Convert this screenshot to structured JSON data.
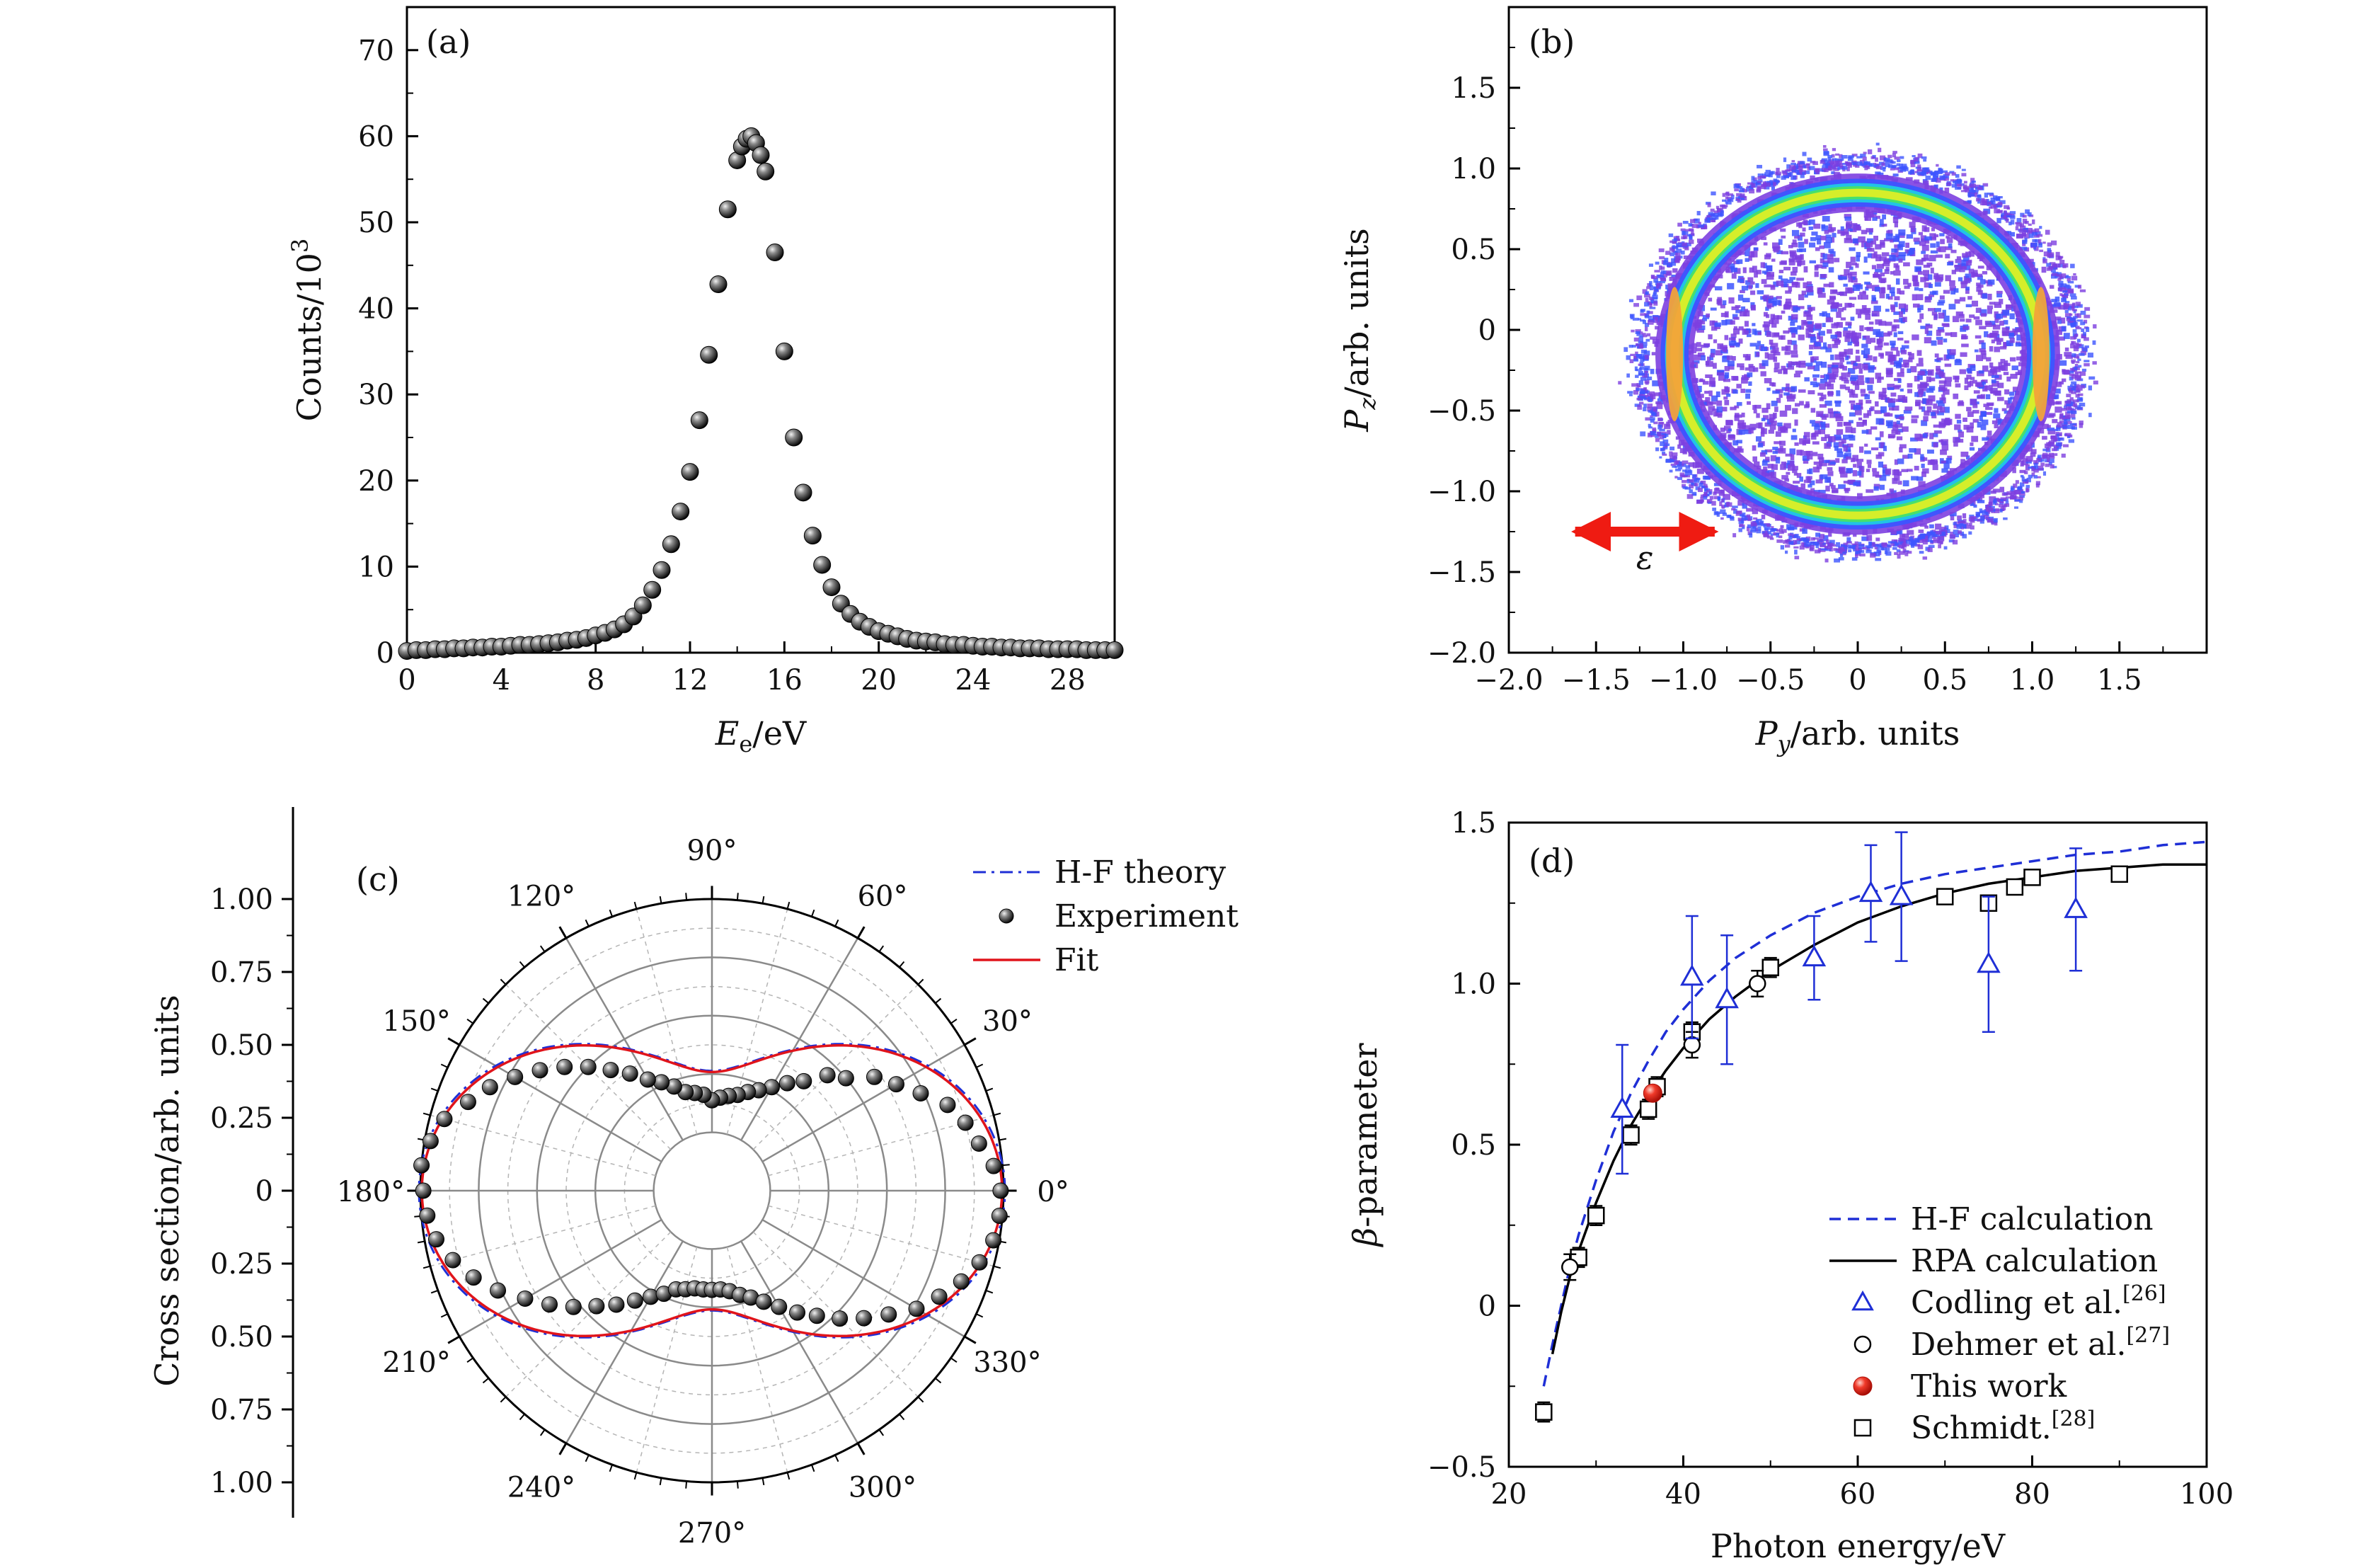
{
  "chart_data": [
    {
      "panel": "(a)",
      "type": "scatter",
      "xlabel": "Eₑ/eV",
      "ylabel": "Counts/10³",
      "xlim": [
        0,
        30
      ],
      "ylim": [
        0,
        75
      ],
      "xticks": [
        "0",
        "4",
        "8",
        "12",
        "16",
        "20",
        "24",
        "28"
      ],
      "yticks": [
        "0",
        "10",
        "20",
        "30",
        "40",
        "50",
        "60",
        "70"
      ],
      "series": [
        {
          "marker": "sphere",
          "x": [
            0,
            0.4,
            0.8,
            1.2,
            1.6,
            2.0,
            2.4,
            2.8,
            3.2,
            3.6,
            4.0,
            4.4,
            4.8,
            5.2,
            5.6,
            6.0,
            6.4,
            6.8,
            7.2,
            7.6,
            8.0,
            8.4,
            8.8,
            9.2,
            9.6,
            10.0,
            10.4,
            10.8,
            11.2,
            11.6,
            12.0,
            12.4,
            12.8,
            13.2,
            13.6,
            14.0,
            14.2,
            14.4,
            14.6,
            14.8,
            15.0,
            15.2,
            15.6,
            16.0,
            16.4,
            16.8,
            17.2,
            17.6,
            18.0,
            18.4,
            18.8,
            19.2,
            19.6,
            20.0,
            20.4,
            20.8,
            21.2,
            21.6,
            22.0,
            22.4,
            22.8,
            23.2,
            23.6,
            24.0,
            24.4,
            24.8,
            25.2,
            25.6,
            26.0,
            26.4,
            26.8,
            27.2,
            27.6,
            28.0,
            28.4,
            28.8,
            29.2,
            29.6,
            30.0
          ],
          "y": [
            0.2,
            0.3,
            0.3,
            0.4,
            0.4,
            0.5,
            0.5,
            0.6,
            0.6,
            0.7,
            0.7,
            0.8,
            0.9,
            0.9,
            1.0,
            1.1,
            1.2,
            1.4,
            1.5,
            1.7,
            2.0,
            2.3,
            2.7,
            3.3,
            4.2,
            5.5,
            7.3,
            9.6,
            12.6,
            16.4,
            21.0,
            27.0,
            34.6,
            42.8,
            51.5,
            57.2,
            58.8,
            59.7,
            60.0,
            59.2,
            57.8,
            55.9,
            46.5,
            35.0,
            25.0,
            18.6,
            13.6,
            10.2,
            7.6,
            5.7,
            4.5,
            3.6,
            3.0,
            2.5,
            2.2,
            1.9,
            1.6,
            1.4,
            1.3,
            1.2,
            1.0,
            0.9,
            0.9,
            0.8,
            0.7,
            0.7,
            0.6,
            0.6,
            0.5,
            0.5,
            0.5,
            0.4,
            0.4,
            0.4,
            0.4,
            0.3,
            0.3,
            0.3,
            0.3
          ]
        }
      ]
    },
    {
      "panel": "(b)",
      "type": "heatmap",
      "xlabel": "Py/arb. units",
      "ylabel": "Pz/arb. units",
      "xlim": [
        -2.0,
        2.0
      ],
      "ylim": [
        -2.0,
        2.0
      ],
      "xticks": [
        "−2.0",
        "−1.5",
        "−1.0",
        "−0.5",
        "0",
        "0.5",
        "1.0",
        "1.5"
      ],
      "yticks": [
        "−2.0",
        "−1.5",
        "−1.0",
        "−0.5",
        "0",
        "0.5",
        "1.0",
        "1.5"
      ],
      "ring_radius": 1.0,
      "arrow_label": "ε",
      "colors": [
        "#7d3fe0",
        "#3d55ff",
        "#21c3e6",
        "#48e06b",
        "#d6ee2a",
        "#f2a33a",
        "#ee7e1e"
      ]
    },
    {
      "panel": "(c)",
      "type": "line",
      "polar": true,
      "ylabel": "Cross section/arb. units",
      "yticks": [
        "1.00",
        "0.75",
        "0.50",
        "0.25",
        "0",
        "0.25",
        "0.50",
        "0.75",
        "1.00"
      ],
      "angle_labels": [
        "0°",
        "30°",
        "60°",
        "90°",
        "120°",
        "150°",
        "180°",
        "210°",
        "240°",
        "270°",
        "300°",
        "330°"
      ],
      "beta": 0.65,
      "legend": [
        "H-F theory",
        "Experiment",
        "Fit"
      ],
      "experiment_angles": [
        0,
        5,
        10,
        15,
        20,
        25,
        30,
        35,
        40,
        45,
        50,
        55,
        60,
        65,
        70,
        75,
        80,
        85,
        90,
        95,
        100,
        105,
        110,
        115,
        120,
        125,
        130,
        135,
        140,
        145,
        150,
        155,
        160,
        165,
        170,
        175,
        180,
        185,
        190,
        195,
        200,
        205,
        210,
        215,
        220,
        225,
        230,
        235,
        240,
        245,
        250,
        255,
        260,
        265,
        270,
        275,
        280,
        285,
        290,
        295,
        300,
        305,
        310,
        315,
        320,
        325,
        330,
        335,
        340,
        345,
        350,
        355
      ],
      "experiment_r": [
        0.99,
        0.97,
        0.93,
        0.9,
        0.86,
        0.79,
        0.73,
        0.68,
        0.6,
        0.56,
        0.49,
        0.45,
        0.41,
        0.38,
        0.36,
        0.34,
        0.33,
        0.32,
        0.31,
        0.33,
        0.34,
        0.35,
        0.38,
        0.41,
        0.44,
        0.49,
        0.54,
        0.6,
        0.66,
        0.72,
        0.78,
        0.84,
        0.89,
        0.95,
        0.98,
        1.0,
        0.99,
        0.98,
        0.96,
        0.92,
        0.87,
        0.81,
        0.74,
        0.68,
        0.62,
        0.56,
        0.51,
        0.46,
        0.42,
        0.39,
        0.36,
        0.35,
        0.34,
        0.34,
        0.34,
        0.34,
        0.35,
        0.37,
        0.39,
        0.42,
        0.46,
        0.51,
        0.56,
        0.62,
        0.68,
        0.74,
        0.81,
        0.86,
        0.91,
        0.95,
        0.98,
        0.99
      ]
    },
    {
      "panel": "(d)",
      "type": "scatter",
      "xlabel": "Photon energy/eV",
      "ylabel": "β-parameter",
      "xlim": [
        20,
        100
      ],
      "ylim": [
        -0.5,
        1.5
      ],
      "xticks": [
        "20",
        "40",
        "60",
        "80",
        "100"
      ],
      "yticks": [
        "−0.5",
        "0",
        "0.5",
        "1.0",
        "1.5"
      ],
      "series": [
        {
          "name": "H-F calculation",
          "style": "dashed",
          "color": "#1f2fd6",
          "x": [
            24,
            25,
            26,
            27,
            28,
            30,
            32,
            34,
            36,
            38,
            40,
            43,
            46,
            50,
            55,
            60,
            65,
            70,
            75,
            80,
            85,
            90,
            95,
            100
          ],
          "y": [
            -0.25,
            -0.12,
            0.0,
            0.12,
            0.22,
            0.39,
            0.54,
            0.66,
            0.76,
            0.85,
            0.92,
            1.01,
            1.08,
            1.15,
            1.22,
            1.27,
            1.31,
            1.34,
            1.36,
            1.38,
            1.4,
            1.41,
            1.43,
            1.44
          ]
        },
        {
          "name": "RPA calculation",
          "style": "solid",
          "color": "#000000",
          "x": [
            25,
            26,
            27,
            28,
            30,
            32,
            34,
            36,
            38,
            40,
            43,
            46,
            50,
            55,
            60,
            65,
            70,
            75,
            80,
            85,
            90,
            95,
            100
          ],
          "y": [
            -0.15,
            -0.02,
            0.09,
            0.17,
            0.32,
            0.45,
            0.56,
            0.65,
            0.73,
            0.8,
            0.89,
            0.96,
            1.04,
            1.12,
            1.19,
            1.24,
            1.28,
            1.31,
            1.33,
            1.35,
            1.36,
            1.37,
            1.37
          ]
        },
        {
          "name": "Codling et al.",
          "ref": "[26]",
          "marker": "triangle",
          "color": "#1f2fd6",
          "x": [
            33,
            41,
            45,
            55,
            61.5,
            65,
            75,
            85
          ],
          "y": [
            0.61,
            1.02,
            0.95,
            1.08,
            1.28,
            1.27,
            1.06,
            1.23
          ],
          "err": [
            0.2,
            0.19,
            0.2,
            0.13,
            0.15,
            0.2,
            0.21,
            0.19
          ]
        },
        {
          "name": "Dehmer et al.",
          "ref": "[27]",
          "marker": "circle",
          "color": "#000000",
          "x": [
            27,
            41,
            48.5
          ],
          "y": [
            0.12,
            0.81,
            1.0
          ],
          "err": [
            0.04,
            0.04,
            0.04
          ]
        },
        {
          "name": "This work",
          "marker": "filled-circle",
          "color": "#e8231a",
          "x": [
            36.5
          ],
          "y": [
            0.66
          ]
        },
        {
          "name": "Schmidt.",
          "ref": "[28]",
          "marker": "square",
          "color": "#000000",
          "x": [
            24,
            28,
            30,
            34,
            36,
            37,
            41,
            50,
            70,
            75,
            78,
            80,
            90
          ],
          "y": [
            -0.33,
            0.15,
            0.28,
            0.53,
            0.61,
            0.68,
            0.85,
            1.05,
            1.27,
            1.25,
            1.3,
            1.33,
            1.34
          ],
          "err": [
            0.03,
            0.03,
            0.03,
            0.03,
            0.03,
            0.03,
            0.03,
            0.03,
            0.02,
            0.02,
            0.02,
            0.02,
            0.02
          ]
        }
      ]
    }
  ]
}
